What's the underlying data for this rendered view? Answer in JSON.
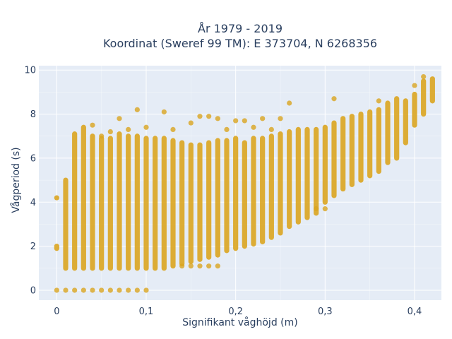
{
  "chart_data": {
    "type": "scatter",
    "title_lines": [
      "År 1979 - 2019",
      "Koordinat (Sweref 99 TM): E 373704, N 6268356"
    ],
    "xlabel": "Signifikant våghöjd (m)",
    "ylabel": "Vågperiod (s)",
    "xlim": [
      -0.02,
      0.43
    ],
    "ylim": [
      -0.45,
      10.2
    ],
    "x_ticks": [
      0,
      0.1,
      0.2,
      0.3,
      0.4
    ],
    "x_tick_labels": [
      "0",
      "0,1",
      "0,2",
      "0,3",
      "0,4"
    ],
    "y_ticks": [
      0,
      2,
      4,
      6,
      8,
      10
    ],
    "y_tick_labels": [
      "0",
      "2",
      "4",
      "6",
      "8",
      "10"
    ],
    "grid": true,
    "marker_color": "#DAA520",
    "background_color": "#E5ECF6",
    "columns": [
      {
        "x": 0.0,
        "ranges": [
          [
            1.9,
            2.0
          ],
          [
            4.2,
            4.2
          ]
        ],
        "extras": [
          0
        ]
      },
      {
        "x": 0.01,
        "ranges": [
          [
            1.0,
            5.0
          ]
        ],
        "extras": [
          0
        ]
      },
      {
        "x": 0.02,
        "ranges": [
          [
            1.0,
            7.1
          ]
        ],
        "extras": [
          0
        ]
      },
      {
        "x": 0.03,
        "ranges": [
          [
            1.0,
            7.4
          ]
        ],
        "extras": [
          0
        ]
      },
      {
        "x": 0.04,
        "ranges": [
          [
            1.0,
            7.0
          ]
        ],
        "extras": [
          0,
          7.5
        ]
      },
      {
        "x": 0.05,
        "ranges": [
          [
            1.0,
            6.9
          ]
        ],
        "extras": [
          0,
          7.0
        ]
      },
      {
        "x": 0.06,
        "ranges": [
          [
            1.0,
            6.9
          ]
        ],
        "extras": [
          0,
          7.2
        ]
      },
      {
        "x": 0.07,
        "ranges": [
          [
            1.0,
            7.1
          ]
        ],
        "extras": [
          0,
          7.8
        ]
      },
      {
        "x": 0.08,
        "ranges": [
          [
            1.0,
            7.0
          ]
        ],
        "extras": [
          0,
          7.3
        ]
      },
      {
        "x": 0.09,
        "ranges": [
          [
            1.0,
            7.0
          ]
        ],
        "extras": [
          0,
          8.2
        ]
      },
      {
        "x": 0.1,
        "ranges": [
          [
            1.0,
            6.9
          ]
        ],
        "extras": [
          0,
          7.4
        ]
      },
      {
        "x": 0.11,
        "ranges": [
          [
            1.0,
            6.9
          ]
        ],
        "extras": []
      },
      {
        "x": 0.12,
        "ranges": [
          [
            1.0,
            6.9
          ]
        ],
        "extras": [
          8.1
        ]
      },
      {
        "x": 0.13,
        "ranges": [
          [
            1.1,
            6.8
          ]
        ],
        "extras": [
          7.3
        ]
      },
      {
        "x": 0.14,
        "ranges": [
          [
            1.2,
            6.7
          ]
        ],
        "extras": [
          1.1
        ]
      },
      {
        "x": 0.15,
        "ranges": [
          [
            1.3,
            6.6
          ]
        ],
        "extras": [
          1.1,
          7.6
        ]
      },
      {
        "x": 0.16,
        "ranges": [
          [
            1.4,
            6.6
          ]
        ],
        "extras": [
          1.1,
          7.9
        ]
      },
      {
        "x": 0.17,
        "ranges": [
          [
            1.5,
            6.7
          ]
        ],
        "extras": [
          1.1,
          7.9
        ]
      },
      {
        "x": 0.18,
        "ranges": [
          [
            1.6,
            6.8
          ]
        ],
        "extras": [
          1.1,
          7.8
        ]
      },
      {
        "x": 0.19,
        "ranges": [
          [
            1.8,
            6.8
          ]
        ],
        "extras": [
          7.3
        ]
      },
      {
        "x": 0.2,
        "ranges": [
          [
            1.9,
            6.9
          ]
        ],
        "extras": [
          7.7
        ]
      },
      {
        "x": 0.21,
        "ranges": [
          [
            2.0,
            6.7
          ]
        ],
        "extras": [
          7.7
        ]
      },
      {
        "x": 0.22,
        "ranges": [
          [
            2.1,
            6.9
          ]
        ],
        "extras": [
          7.4
        ]
      },
      {
        "x": 0.23,
        "ranges": [
          [
            2.2,
            6.9
          ]
        ],
        "extras": [
          7.8
        ]
      },
      {
        "x": 0.24,
        "ranges": [
          [
            2.4,
            7.0
          ]
        ],
        "extras": [
          7.3
        ]
      },
      {
        "x": 0.25,
        "ranges": [
          [
            2.6,
            7.1
          ]
        ],
        "extras": [
          7.8
        ]
      },
      {
        "x": 0.26,
        "ranges": [
          [
            2.9,
            7.2
          ]
        ],
        "extras": [
          8.5
        ]
      },
      {
        "x": 0.27,
        "ranges": [
          [
            3.1,
            7.3
          ]
        ],
        "extras": []
      },
      {
        "x": 0.28,
        "ranges": [
          [
            3.3,
            7.3
          ]
        ],
        "extras": []
      },
      {
        "x": 0.29,
        "ranges": [
          [
            3.5,
            7.3
          ]
        ],
        "extras": [
          3.7
        ]
      },
      {
        "x": 0.3,
        "ranges": [
          [
            4.0,
            7.4
          ]
        ],
        "extras": [
          3.7
        ]
      },
      {
        "x": 0.31,
        "ranges": [
          [
            4.3,
            7.6
          ]
        ],
        "extras": [
          8.7
        ]
      },
      {
        "x": 0.32,
        "ranges": [
          [
            4.6,
            7.8
          ]
        ],
        "extras": []
      },
      {
        "x": 0.33,
        "ranges": [
          [
            4.8,
            7.9
          ]
        ],
        "extras": []
      },
      {
        "x": 0.34,
        "ranges": [
          [
            5.0,
            8.0
          ]
        ],
        "extras": []
      },
      {
        "x": 0.35,
        "ranges": [
          [
            5.2,
            8.1
          ]
        ],
        "extras": []
      },
      {
        "x": 0.36,
        "ranges": [
          [
            5.4,
            8.2
          ]
        ],
        "extras": [
          8.6
        ]
      },
      {
        "x": 0.37,
        "ranges": [
          [
            5.8,
            8.5
          ]
        ],
        "extras": []
      },
      {
        "x": 0.38,
        "ranges": [
          [
            6.0,
            8.7
          ]
        ],
        "extras": []
      },
      {
        "x": 0.39,
        "ranges": [
          [
            6.7,
            8.6
          ]
        ],
        "extras": []
      },
      {
        "x": 0.4,
        "ranges": [
          [
            7.5,
            8.9
          ]
        ],
        "extras": [
          9.3
        ]
      },
      {
        "x": 0.41,
        "ranges": [
          [
            8.0,
            9.5
          ]
        ],
        "extras": [
          9.7
        ]
      },
      {
        "x": 0.42,
        "ranges": [
          [
            8.6,
            9.6
          ]
        ],
        "extras": []
      }
    ]
  }
}
